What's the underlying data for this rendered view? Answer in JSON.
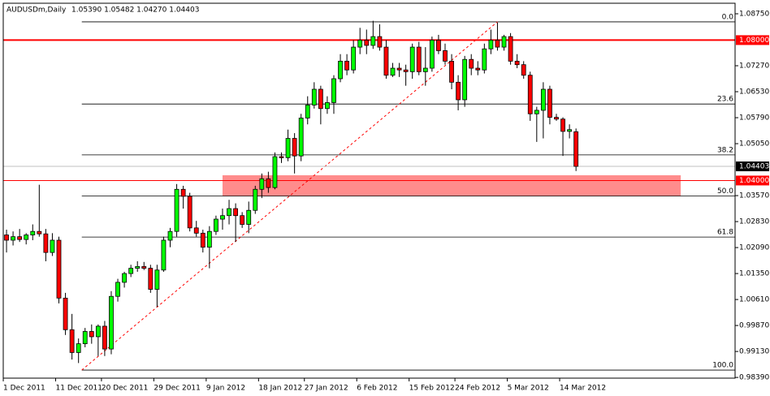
{
  "chart_data": {
    "type": "candlestick",
    "title": "AUDUSDm,Daily",
    "ohlc_text": "1.05390 1.05482 1.04270 1.04403",
    "up_color": "#00ff00",
    "down_color": "#ff0000",
    "open": [
      1.0245,
      1.023,
      1.024,
      1.0232,
      1.0245,
      1.0255,
      1.0248,
      1.0195,
      1.023,
      1.0065,
      0.9975,
      0.991,
      0.9935,
      0.997,
      0.9955,
      0.9985,
      0.992,
      1.007,
      1.011,
      1.0135,
      1.015,
      1.0155,
      1.015,
      1.009,
      1.0145,
      1.023,
      1.0255,
      1.0375,
      1.0355,
      1.0265,
      1.025,
      1.021,
      1.0255,
      1.029,
      1.03,
      1.032,
      1.03,
      1.0275,
      1.0315,
      1.0375,
      1.0405,
      1.038,
      1.0468,
      1.0465,
      1.052,
      1.047,
      1.0578,
      1.0615,
      1.066,
      1.0605,
      1.0622,
      1.069,
      1.074,
      1.0715,
      1.078,
      1.08,
      1.0785,
      1.081,
      1.078,
      1.07,
      1.072,
      1.0715,
      1.071,
      1.078,
      1.071,
      1.072,
      1.08,
      1.077,
      1.074,
      1.068,
      1.063,
      1.0745,
      1.072,
      1.0715,
      1.0775,
      1.08,
      1.078,
      1.081,
      1.074,
      1.073,
      1.07,
      1.059,
      1.06,
      1.066,
      1.058,
      1.0575,
      1.054,
      1.0539
    ],
    "high": [
      1.026,
      1.0255,
      1.0262,
      1.025,
      1.0275,
      1.0388,
      1.0262,
      1.025,
      1.024,
      1.008,
      1.002,
      0.995,
      0.998,
      0.999,
      0.999,
      1.0,
      1.0085,
      1.012,
      1.014,
      1.016,
      1.017,
      1.0168,
      1.016,
      1.016,
      1.024,
      1.0265,
      1.039,
      1.0385,
      1.0365,
      1.0285,
      1.026,
      1.027,
      1.03,
      1.032,
      1.0345,
      1.0335,
      1.031,
      1.034,
      1.0385,
      1.042,
      1.0425,
      1.048,
      1.048,
      1.0545,
      1.0535,
      1.059,
      1.064,
      1.068,
      1.067,
      1.064,
      1.07,
      1.076,
      1.076,
      1.08,
      1.0835,
      1.083,
      1.0855,
      1.0845,
      1.08,
      1.0735,
      1.0735,
      1.073,
      1.079,
      1.0795,
      1.078,
      1.081,
      1.0815,
      1.079,
      1.076,
      1.07,
      1.0755,
      1.076,
      1.074,
      1.079,
      1.083,
      1.085,
      1.0815,
      1.082,
      1.076,
      1.074,
      1.071,
      1.061,
      1.068,
      1.067,
      1.059,
      1.058,
      1.056,
      1.05482
    ],
    "low": [
      1.0195,
      1.0215,
      1.0225,
      1.0218,
      1.023,
      1.024,
      1.017,
      1.0185,
      1.005,
      0.996,
      0.989,
      0.988,
      0.9925,
      0.9935,
      0.99,
      0.99,
      0.9905,
      1.0055,
      1.0095,
      1.0125,
      1.014,
      1.0145,
      1.008,
      1.004,
      1.014,
      1.021,
      1.024,
      1.032,
      1.0255,
      1.024,
      1.0195,
      1.015,
      1.0245,
      1.026,
      1.0275,
      1.0225,
      1.0265,
      1.025,
      1.0305,
      1.035,
      1.0365,
      1.0375,
      1.045,
      1.0455,
      1.042,
      1.0455,
      1.056,
      1.0605,
      1.056,
      1.059,
      1.059,
      1.068,
      1.07,
      1.0705,
      1.076,
      1.076,
      1.0775,
      1.077,
      1.069,
      1.0695,
      1.0695,
      1.067,
      1.069,
      1.07,
      1.067,
      1.071,
      1.076,
      1.073,
      1.066,
      1.06,
      1.061,
      1.07,
      1.07,
      1.0705,
      1.076,
      1.077,
      1.077,
      1.073,
      1.072,
      1.069,
      1.057,
      1.051,
      1.052,
      1.056,
      1.057,
      1.047,
      1.052,
      1.0427
    ],
    "close": [
      1.023,
      1.024,
      1.0232,
      1.0245,
      1.0255,
      1.0248,
      1.0195,
      1.023,
      1.0065,
      0.9975,
      0.991,
      0.9935,
      0.997,
      0.9955,
      0.9985,
      0.992,
      1.007,
      1.011,
      1.0135,
      1.015,
      1.0155,
      1.015,
      1.009,
      1.0145,
      1.023,
      1.0255,
      1.0375,
      1.0355,
      1.0265,
      1.025,
      1.021,
      1.0255,
      1.029,
      1.03,
      1.032,
      1.03,
      1.0275,
      1.0315,
      1.0375,
      1.0405,
      1.038,
      1.0468,
      1.0465,
      1.052,
      1.047,
      1.0578,
      1.0615,
      1.066,
      1.0605,
      1.0622,
      1.069,
      1.074,
      1.0715,
      1.078,
      1.08,
      1.0785,
      1.081,
      1.078,
      1.07,
      1.072,
      1.0715,
      1.071,
      1.078,
      1.071,
      1.072,
      1.08,
      1.077,
      1.074,
      1.068,
      1.063,
      1.0745,
      1.072,
      1.0715,
      1.0775,
      1.08,
      1.078,
      1.081,
      1.074,
      1.073,
      1.07,
      1.059,
      1.06,
      1.066,
      1.058,
      1.0575,
      1.054,
      1.0545,
      1.04403
    ],
    "xlim": [
      -0.5,
      111.3
    ],
    "ylim": [
      0.9837,
      1.0905
    ],
    "xticks": [
      {
        "value": 0,
        "label": "1 Dec 2011"
      },
      {
        "value": 8,
        "label": "11 Dec 2011"
      },
      {
        "value": 15,
        "label": "20 Dec 2011"
      },
      {
        "value": 23,
        "label": "29 Dec 2011"
      },
      {
        "value": 31,
        "label": "9 Jan 2012"
      },
      {
        "value": 39,
        "label": "18 Jan 2012"
      },
      {
        "value": 46,
        "label": "27 Jan 2012"
      },
      {
        "value": 54,
        "label": "6 Feb 2012"
      },
      {
        "value": 62,
        "label": "15 Feb 2012"
      },
      {
        "value": 69,
        "label": "24 Feb 2012"
      },
      {
        "value": 77,
        "label": "5 Mar 2012"
      },
      {
        "value": 85,
        "label": "14 Mar 2012"
      }
    ],
    "yticks": [
      {
        "value": 1.0875,
        "label": "1.08750"
      },
      {
        "value": 1.0727,
        "label": "1.07270"
      },
      {
        "value": 1.0653,
        "label": "1.06530"
      },
      {
        "value": 1.0579,
        "label": "1.05790"
      },
      {
        "value": 1.0505,
        "label": "1.05050"
      },
      {
        "value": 1.0357,
        "label": "1.03570"
      },
      {
        "value": 1.0283,
        "label": "1.02830"
      },
      {
        "value": 1.0209,
        "label": "1.02090"
      },
      {
        "value": 1.0135,
        "label": "1.01350"
      },
      {
        "value": 1.0061,
        "label": "1.00610"
      },
      {
        "value": 0.9987,
        "label": "0.99870"
      },
      {
        "value": 0.9913,
        "label": "0.99130"
      },
      {
        "value": 0.9839,
        "label": "0.98390"
      }
    ],
    "hlines": [
      {
        "value": 1.08,
        "label": "1.08000",
        "color": "#ff0000"
      },
      {
        "value": 1.04,
        "label": "1.04000",
        "color": "#ff0000"
      }
    ],
    "current_price": {
      "value": 1.04403,
      "label": "1.04403",
      "color": "#c0c0c0"
    },
    "zone": {
      "x": [
        33,
        103
      ],
      "y": [
        1.0355,
        1.0415
      ],
      "color": "#ff7f7f"
    },
    "fibonacci": {
      "high": 1.0852,
      "low": 0.986,
      "start": 11.5,
      "end": 75,
      "levels": [
        {
          "value": 0,
          "label": "0.0"
        },
        {
          "value": 23.6,
          "label": "23.6"
        },
        {
          "value": 38.2,
          "label": "38.2"
        },
        {
          "value": 50,
          "label": "50.0"
        },
        {
          "value": 61.8,
          "label": "61.8"
        },
        {
          "value": 100,
          "label": "100.0"
        }
      ]
    }
  }
}
